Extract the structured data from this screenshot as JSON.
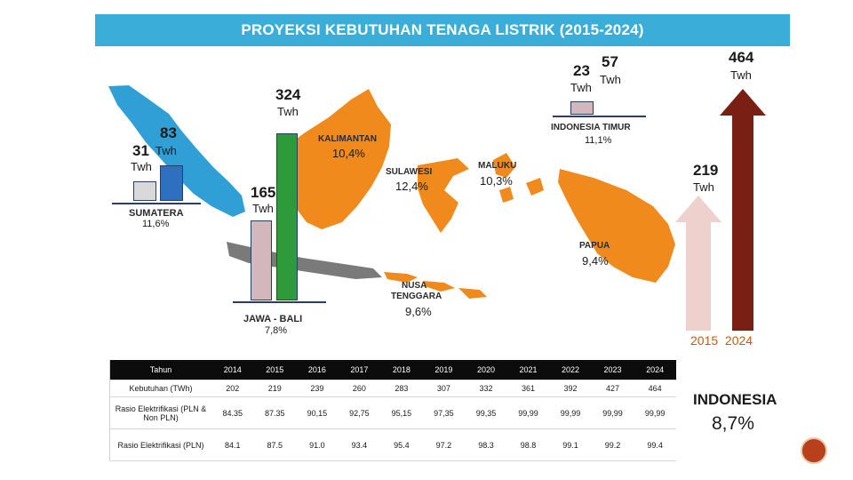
{
  "title": "PROYEKSI KEBUTUHAN TENAGA LISTRIK (2015-2024)",
  "regions": {
    "sumatera": {
      "name": "SUMATERA",
      "pct": "11,6%",
      "val_2015": "31",
      "val_2024": "83",
      "unit": "Twh"
    },
    "jawa_bali": {
      "name": "JAWA - BALI",
      "pct": "7,8%",
      "val_2015": "165",
      "val_2024": "324",
      "unit": "Twh"
    },
    "kalimantan": {
      "name": "KALIMANTAN",
      "pct": "10,4%"
    },
    "sulawesi": {
      "name": "SULAWESI",
      "pct": "12,4%"
    },
    "maluku": {
      "name": "MALUKU",
      "pct": "10,3%"
    },
    "papua": {
      "name": "PAPUA",
      "pct": "9,4%"
    },
    "nusa_tenggara": {
      "name": "NUSA TENGGARA",
      "pct": "9,6%"
    },
    "indonesia_timur": {
      "name": "INDONESIA TIMUR",
      "pct": "11,1%",
      "val_2015": "23",
      "val_2024": "57",
      "unit": "Twh"
    }
  },
  "national": {
    "val_2015": "219",
    "val_2024": "464",
    "unit": "Twh",
    "years": "2015  2024",
    "name": "INDONESIA",
    "pct": "8,7%",
    "level_2015": 0.472,
    "level_2024": 1.0
  },
  "bar_levels": {
    "sumatera_2015": 0.373,
    "sumatera_2024": 1.0,
    "jawa_bali_2015": 0.509,
    "jawa_bali_2024": 1.0,
    "timur_2015": 0.4,
    "timur_2024": 1.0
  },
  "table": {
    "headers": [
      "Tahun",
      "2014",
      "2015",
      "2016",
      "2017",
      "2018",
      "2019",
      "2020",
      "2021",
      "2022",
      "2023",
      "2024"
    ],
    "rows": [
      [
        "Kebutuhan (TWh)",
        "202",
        "219",
        "239",
        "260",
        "283",
        "307",
        "332",
        "361",
        "392",
        "427",
        "464"
      ],
      [
        "Rasio Elektrifikasi (PLN & Non PLN)",
        "84.35",
        "87.35",
        "90,15",
        "92,75",
        "95,15",
        "97,35",
        "99,35",
        "99,99",
        "99,99",
        "99,99",
        "99,99"
      ],
      [
        "Rasio Elektrifikasi (PLN)",
        "84.1",
        "87.5",
        "91.0",
        "93.4",
        "95.4",
        "97.2",
        "98.3",
        "98.8",
        "99.1",
        "99.2",
        "99.4"
      ]
    ]
  },
  "colors": {
    "header": "#3aaed8",
    "sumatera": "#2f9fd6",
    "jawa": "#7a7a7a",
    "east": "#f08a1c",
    "bar_2015": "#d3b7bd",
    "bar_2024": "#2f9a3a",
    "arrow_2015": "#eed0cc",
    "arrow_2024": "#7a1f14"
  }
}
